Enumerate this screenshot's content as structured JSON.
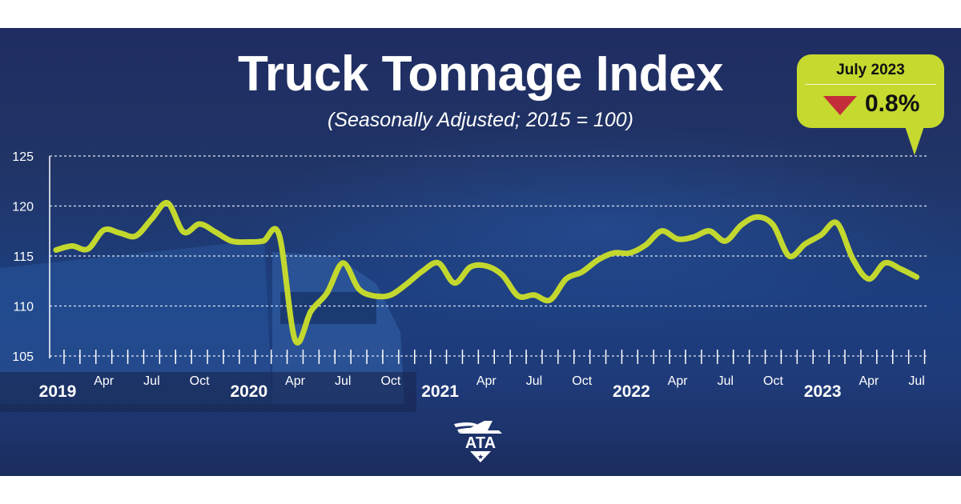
{
  "title": "Truck Tonnage Index",
  "subtitle": "(Seasonally Adjusted; 2015 = 100)",
  "callout": {
    "date": "July 2023",
    "direction": "down",
    "change": "0.8%",
    "arrow_color": "#c42e3b",
    "background": "#c5d92f"
  },
  "logo_text": "ATA",
  "colors": {
    "line": "#c3d82e",
    "background": "#1f2f63",
    "text": "#ffffff"
  },
  "chart_data": {
    "type": "line",
    "title": "Truck Tonnage Index",
    "subtitle": "(Seasonally Adjusted; 2015 = 100)",
    "ylim": [
      105,
      125
    ],
    "yticks": [
      "105",
      "110",
      "115",
      "120",
      "125"
    ],
    "grid": true,
    "x_month_labels": [
      "Apr",
      "Jul",
      "Oct"
    ],
    "x_year_labels": [
      "2019",
      "2020",
      "2021",
      "2022",
      "2023"
    ],
    "x_range": [
      "2019-01",
      "2023-07"
    ],
    "series": [
      {
        "x_start": "2019-01",
        "values": [
          115.6,
          116.0,
          115.7,
          117.6,
          117.3,
          117.0,
          118.7,
          120.3,
          117.4,
          118.2,
          117.4,
          116.5,
          116.4,
          116.5,
          117.1,
          106.6,
          109.5,
          111.3,
          114.3,
          111.7,
          111.0,
          111.1,
          112.2,
          113.5,
          114.3,
          112.3,
          113.9,
          114.0,
          113.1,
          111.0,
          111.1,
          110.6,
          112.7,
          113.4,
          114.6,
          115.3,
          115.3,
          116.1,
          117.5,
          116.7,
          116.9,
          117.5,
          116.5,
          118.1,
          118.9,
          118.1,
          115.0,
          116.2,
          117.1,
          118.3,
          114.7,
          112.7,
          114.3,
          113.7,
          112.9
        ]
      }
    ]
  }
}
